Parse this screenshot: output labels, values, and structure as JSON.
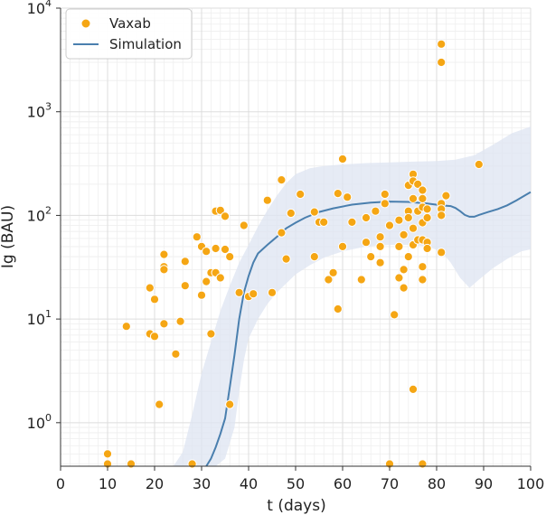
{
  "chart_data": {
    "type": "scatter",
    "xlabel": "t (days)",
    "ylabel": "Ig (BAU)",
    "xlim": [
      0,
      100
    ],
    "ylim_log10": [
      -0.42,
      4.0
    ],
    "grid": true,
    "legend_position": "top-left",
    "x_ticks": [
      "0",
      "10",
      "20",
      "30",
      "40",
      "50",
      "60",
      "70",
      "80",
      "90",
      "100"
    ],
    "y_ticks": [
      {
        "exp": 0,
        "base": "10",
        "sup": "0"
      },
      {
        "exp": 1,
        "base": "10",
        "sup": "1"
      },
      {
        "exp": 2,
        "base": "10",
        "sup": "2"
      },
      {
        "exp": 3,
        "base": "10",
        "sup": "3"
      },
      {
        "exp": 4,
        "base": "10",
        "sup": "4"
      }
    ],
    "colors": {
      "scatter": "#F5A614",
      "line": "#4A7FAE",
      "band": "#DDE4F1"
    },
    "series": [
      {
        "name": "Vaxab",
        "kind": "scatter",
        "points": [
          [
            10,
            0.5
          ],
          [
            10,
            0.4
          ],
          [
            14,
            8.5
          ],
          [
            15,
            0.4
          ],
          [
            19,
            20
          ],
          [
            19,
            7.2
          ],
          [
            20,
            15.5
          ],
          [
            20,
            6.8
          ],
          [
            21,
            1.5
          ],
          [
            22,
            42
          ],
          [
            22,
            32
          ],
          [
            22,
            30
          ],
          [
            22,
            9
          ],
          [
            24.5,
            4.6
          ],
          [
            25.5,
            9.5
          ],
          [
            26.5,
            36
          ],
          [
            26.5,
            21
          ],
          [
            28,
            0.4
          ],
          [
            29,
            62
          ],
          [
            30,
            50
          ],
          [
            30,
            17
          ],
          [
            31,
            45
          ],
          [
            31,
            23
          ],
          [
            32,
            28
          ],
          [
            32,
            7.2
          ],
          [
            33,
            110
          ],
          [
            33,
            48
          ],
          [
            33,
            28
          ],
          [
            34,
            112
          ],
          [
            34,
            25
          ],
          [
            35,
            98
          ],
          [
            35,
            47
          ],
          [
            36,
            40
          ],
          [
            36,
            1.5
          ],
          [
            38,
            18
          ],
          [
            39,
            80
          ],
          [
            40,
            16.5
          ],
          [
            41,
            17.5
          ],
          [
            44,
            140
          ],
          [
            45,
            18
          ],
          [
            47,
            220
          ],
          [
            47,
            68
          ],
          [
            48,
            38
          ],
          [
            49,
            105
          ],
          [
            51,
            160
          ],
          [
            54,
            108
          ],
          [
            54,
            40
          ],
          [
            55,
            86
          ],
          [
            56,
            86
          ],
          [
            57,
            24
          ],
          [
            58,
            28
          ],
          [
            59,
            163
          ],
          [
            59,
            12.5
          ],
          [
            60,
            350
          ],
          [
            60,
            50
          ],
          [
            61,
            150
          ],
          [
            62,
            86
          ],
          [
            64,
            24
          ],
          [
            65,
            95
          ],
          [
            65,
            55
          ],
          [
            66,
            40
          ],
          [
            67,
            110
          ],
          [
            68,
            62
          ],
          [
            68,
            50
          ],
          [
            68,
            35
          ],
          [
            69,
            160
          ],
          [
            69,
            130
          ],
          [
            70,
            80
          ],
          [
            70,
            0.4
          ],
          [
            71,
            11
          ],
          [
            72,
            90
          ],
          [
            72,
            50
          ],
          [
            72,
            25
          ],
          [
            73,
            65
          ],
          [
            73,
            30
          ],
          [
            73,
            20
          ],
          [
            74,
            195
          ],
          [
            74,
            110
          ],
          [
            74,
            95
          ],
          [
            74,
            40
          ],
          [
            75,
            250
          ],
          [
            75,
            215
          ],
          [
            75,
            145
          ],
          [
            75,
            75
          ],
          [
            75,
            52
          ],
          [
            75,
            2.1
          ],
          [
            76,
            200
          ],
          [
            76,
            110
          ],
          [
            76,
            58
          ],
          [
            77,
            175
          ],
          [
            77,
            145
          ],
          [
            77,
            120
          ],
          [
            77,
            85
          ],
          [
            77,
            58
          ],
          [
            77,
            32
          ],
          [
            77,
            24
          ],
          [
            77,
            0.4
          ],
          [
            78,
            115
          ],
          [
            78,
            95
          ],
          [
            78,
            55
          ],
          [
            78,
            48
          ],
          [
            81,
            4500
          ],
          [
            81,
            3000
          ],
          [
            81,
            130
          ],
          [
            81,
            115
          ],
          [
            81,
            100
          ],
          [
            81,
            44
          ],
          [
            82,
            155
          ],
          [
            89,
            310
          ]
        ]
      },
      {
        "name": "Simulation",
        "kind": "line",
        "points": [
          [
            31,
            0.38
          ],
          [
            32,
            0.45
          ],
          [
            33,
            0.58
          ],
          [
            34,
            0.78
          ],
          [
            35,
            1.1
          ],
          [
            36,
            2.2
          ],
          [
            37,
            4.5
          ],
          [
            38,
            10
          ],
          [
            39,
            18
          ],
          [
            40,
            26
          ],
          [
            41,
            35
          ],
          [
            42,
            43
          ],
          [
            44,
            52
          ],
          [
            46,
            62
          ],
          [
            48,
            75
          ],
          [
            50,
            85
          ],
          [
            52,
            95
          ],
          [
            55,
            108
          ],
          [
            58,
            117
          ],
          [
            62,
            127
          ],
          [
            66,
            133
          ],
          [
            70,
            136
          ],
          [
            74,
            135
          ],
          [
            78,
            130
          ],
          [
            81,
            125
          ],
          [
            83,
            123
          ],
          [
            84,
            118
          ],
          [
            85,
            110
          ],
          [
            86,
            101
          ],
          [
            87,
            97
          ],
          [
            88,
            97
          ],
          [
            89,
            101
          ],
          [
            91,
            108
          ],
          [
            93,
            115
          ],
          [
            95,
            125
          ],
          [
            97,
            140
          ],
          [
            99,
            158
          ],
          [
            100,
            168
          ]
        ]
      },
      {
        "name": "simulation-band",
        "kind": "band",
        "upper": [
          [
            24,
            0.38
          ],
          [
            26,
            0.52
          ],
          [
            28,
            1.2
          ],
          [
            30,
            3
          ],
          [
            32,
            6
          ],
          [
            34,
            12
          ],
          [
            36,
            21
          ],
          [
            38,
            35
          ],
          [
            40,
            52
          ],
          [
            42,
            78
          ],
          [
            44,
            112
          ],
          [
            46,
            155
          ],
          [
            48,
            205
          ],
          [
            50,
            250
          ],
          [
            53,
            285
          ],
          [
            56,
            300
          ],
          [
            60,
            310
          ],
          [
            65,
            320
          ],
          [
            70,
            325
          ],
          [
            75,
            330
          ],
          [
            80,
            335
          ],
          [
            84,
            345
          ],
          [
            88,
            380
          ],
          [
            92,
            480
          ],
          [
            96,
            620
          ],
          [
            100,
            720
          ]
        ],
        "lower": [
          [
            24,
            0.38
          ],
          [
            28,
            0.38
          ],
          [
            30,
            0.38
          ],
          [
            33,
            0.38
          ],
          [
            35,
            0.45
          ],
          [
            37,
            0.9
          ],
          [
            38,
            2
          ],
          [
            39,
            4
          ],
          [
            40,
            6.5
          ],
          [
            42,
            10
          ],
          [
            44,
            14
          ],
          [
            46,
            18
          ],
          [
            48,
            22
          ],
          [
            50,
            27
          ],
          [
            53,
            33
          ],
          [
            56,
            39
          ],
          [
            60,
            45
          ],
          [
            65,
            50
          ],
          [
            70,
            52
          ],
          [
            75,
            52
          ],
          [
            78,
            50
          ],
          [
            81,
            45
          ],
          [
            83,
            35
          ],
          [
            85,
            25
          ],
          [
            87,
            20
          ],
          [
            89,
            24
          ],
          [
            92,
            31
          ],
          [
            95,
            38
          ],
          [
            98,
            45
          ],
          [
            100,
            47
          ]
        ]
      }
    ]
  }
}
